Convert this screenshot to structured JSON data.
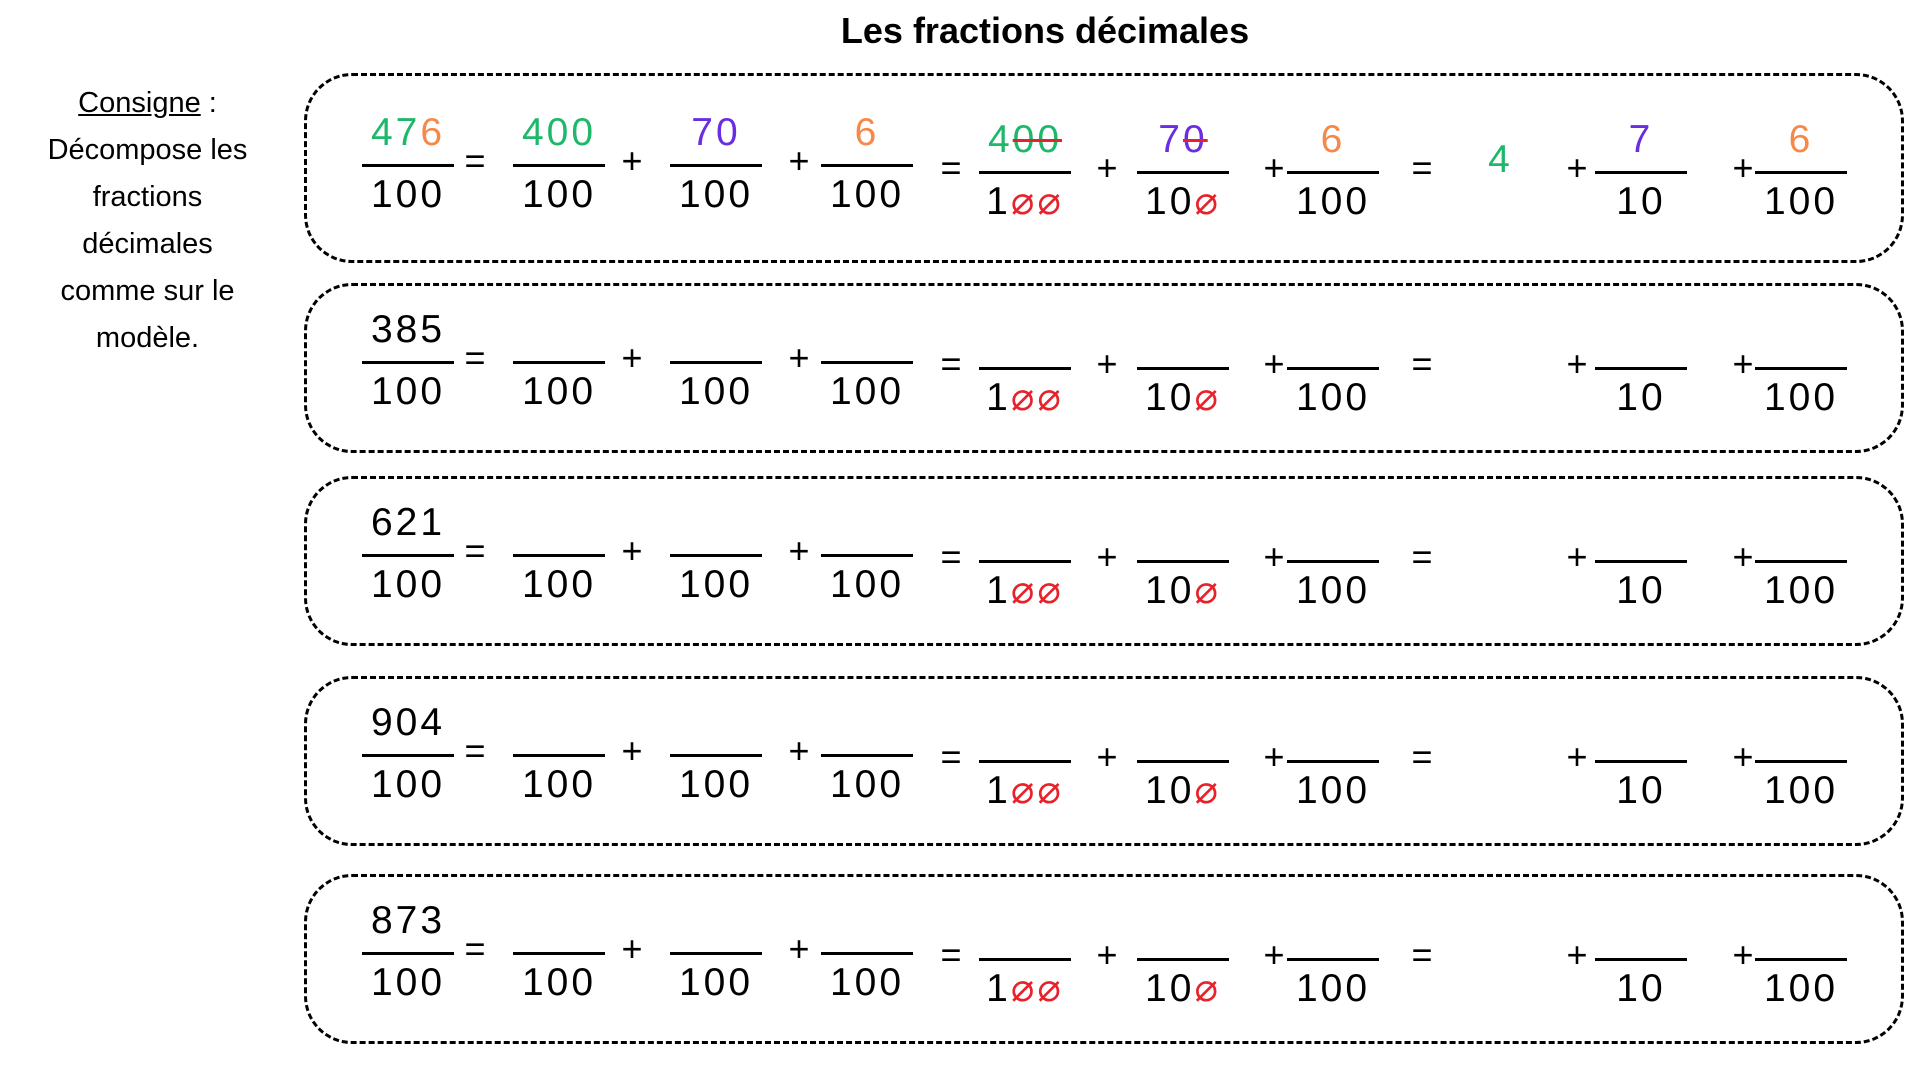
{
  "title": "Les fractions décimales",
  "instruction": {
    "label": "Consigne",
    "sep": " :",
    "lines": [
      "Décompose les",
      "fractions",
      "décimales",
      "comme sur le",
      "modèle."
    ]
  },
  "symbols": {
    "equals": "=",
    "plus": "+"
  },
  "denominators": {
    "hundred": "100",
    "ten": "10",
    "hundred_prefix": "1"
  },
  "colors": {
    "green": "#1db86a",
    "purple": "#6a2de0",
    "orange": "#f5894a",
    "strike": "#e8222a"
  },
  "model": {
    "numerator_parts": [
      "47",
      "6"
    ],
    "hundreds": "400",
    "tens": "70",
    "units": "6",
    "hundreds_digit": "4",
    "tens_kept": "7",
    "tens_struck": "0",
    "hundreds_kept": "4",
    "hundreds_struck": "00",
    "whole": "4",
    "tenths": "7",
    "hundredths": "6"
  },
  "exercises": [
    {
      "numerator": "385"
    },
    {
      "numerator": "621"
    },
    {
      "numerator": "904"
    },
    {
      "numerator": "873"
    }
  ]
}
